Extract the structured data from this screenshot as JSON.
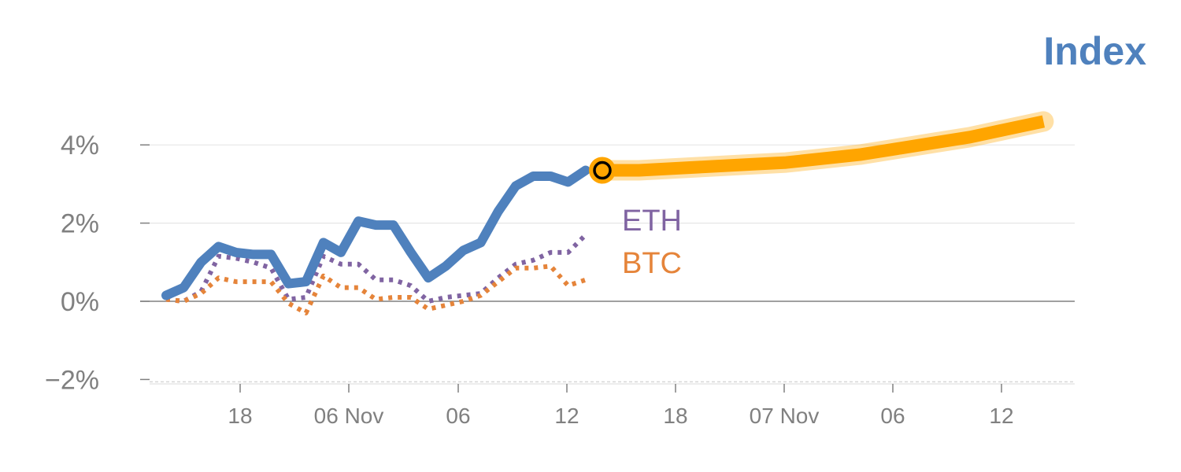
{
  "chart_data": {
    "type": "line",
    "title": "Index",
    "xlabel": "",
    "ylabel": "",
    "x_tick_labels": [
      "18",
      "06 Nov",
      "06",
      "12",
      "18",
      "07 Nov",
      "06",
      "12"
    ],
    "y_tick_labels": [
      "4%",
      "2%",
      "0%",
      "−2%"
    ],
    "y_ticks": [
      4,
      2,
      0,
      -2
    ],
    "ylim": [
      -2.1,
      4.6
    ],
    "grid": true,
    "series": [
      {
        "name": "Index",
        "color": "#4f81bd",
        "style": "solid",
        "values": [
          0.15,
          0.35,
          1.0,
          1.4,
          1.25,
          1.2,
          1.2,
          0.45,
          0.5,
          1.5,
          1.25,
          2.05,
          1.95,
          1.95,
          1.25,
          0.6,
          0.9,
          1.3,
          1.5,
          2.3,
          2.95,
          3.2,
          3.2,
          3.05,
          3.35
        ]
      },
      {
        "name": "ETH",
        "color": "#8064a2",
        "style": "dotted",
        "values": [
          0.05,
          0.0,
          0.25,
          1.15,
          1.1,
          1.0,
          0.85,
          0.05,
          0.1,
          1.15,
          0.95,
          0.95,
          0.55,
          0.55,
          0.4,
          0.0,
          0.1,
          0.15,
          0.2,
          0.6,
          0.95,
          1.05,
          1.25,
          1.25,
          1.7
        ]
      },
      {
        "name": "BTC",
        "color": "#e5843a",
        "style": "dotted",
        "values": [
          0.05,
          0.0,
          0.2,
          0.6,
          0.5,
          0.5,
          0.5,
          -0.05,
          -0.3,
          0.65,
          0.35,
          0.35,
          0.05,
          0.1,
          0.1,
          -0.2,
          -0.1,
          0.0,
          0.15,
          0.5,
          0.85,
          0.85,
          0.9,
          0.4,
          0.55
        ]
      },
      {
        "name": "",
        "color": "#ffa500",
        "style": "projection",
        "values": [
          3.35,
          3.35,
          3.4,
          3.45,
          3.5,
          3.55,
          3.65,
          3.75,
          3.9,
          4.05,
          4.2,
          4.4,
          4.6
        ]
      }
    ],
    "series_labels": [
      {
        "text": "ETH",
        "color": "#8064a2"
      },
      {
        "text": "BTC",
        "color": "#e5843a"
      }
    ]
  }
}
